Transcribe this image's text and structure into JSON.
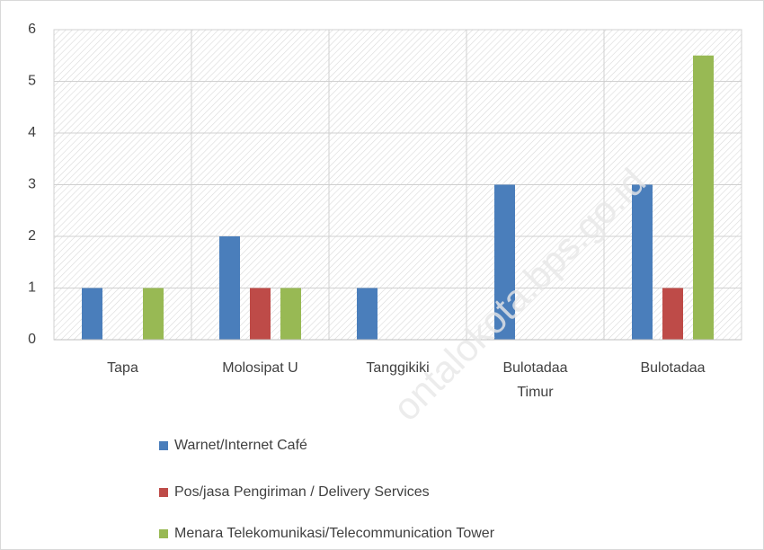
{
  "chart_data": {
    "type": "bar",
    "categories": [
      "Tapa",
      "Molosipat U",
      "Tanggikiki",
      "Bulotadaa Timur",
      "Bulotadaa"
    ],
    "series": [
      {
        "name": "Warnet/Internet Café",
        "color": "#4a7ebb",
        "values": [
          1,
          2,
          1,
          3,
          3
        ]
      },
      {
        "name": "Pos/jasa Pengiriman / Delivery Services",
        "color": "#be4b48",
        "values": [
          0,
          1,
          0,
          0,
          1
        ]
      },
      {
        "name": "Menara Telekomunikasi/Telecommunication Tower",
        "color": "#98b954",
        "values": [
          1,
          1,
          0,
          0,
          5.5
        ]
      }
    ],
    "ylim": [
      0,
      6
    ],
    "yticks": [
      0,
      1,
      2,
      3,
      4,
      5,
      6
    ],
    "grid": true,
    "watermark": "ontalokota.bps.go.id"
  }
}
